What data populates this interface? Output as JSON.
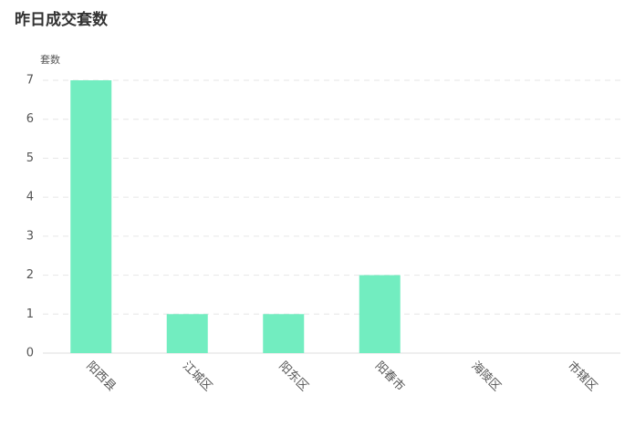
{
  "chart_data": {
    "type": "bar",
    "title": "昨日成交套数",
    "y_label": "套数",
    "categories": [
      "阳西县",
      "江城区",
      "阳东区",
      "阳春市",
      "海陵区",
      "市辖区"
    ],
    "values": [
      7,
      1,
      1,
      2,
      0,
      0
    ],
    "color": "#72edc0",
    "ylim": [
      0,
      7
    ],
    "yticks": [
      0,
      1,
      2,
      3,
      4,
      5,
      6,
      7
    ],
    "grid": true
  }
}
